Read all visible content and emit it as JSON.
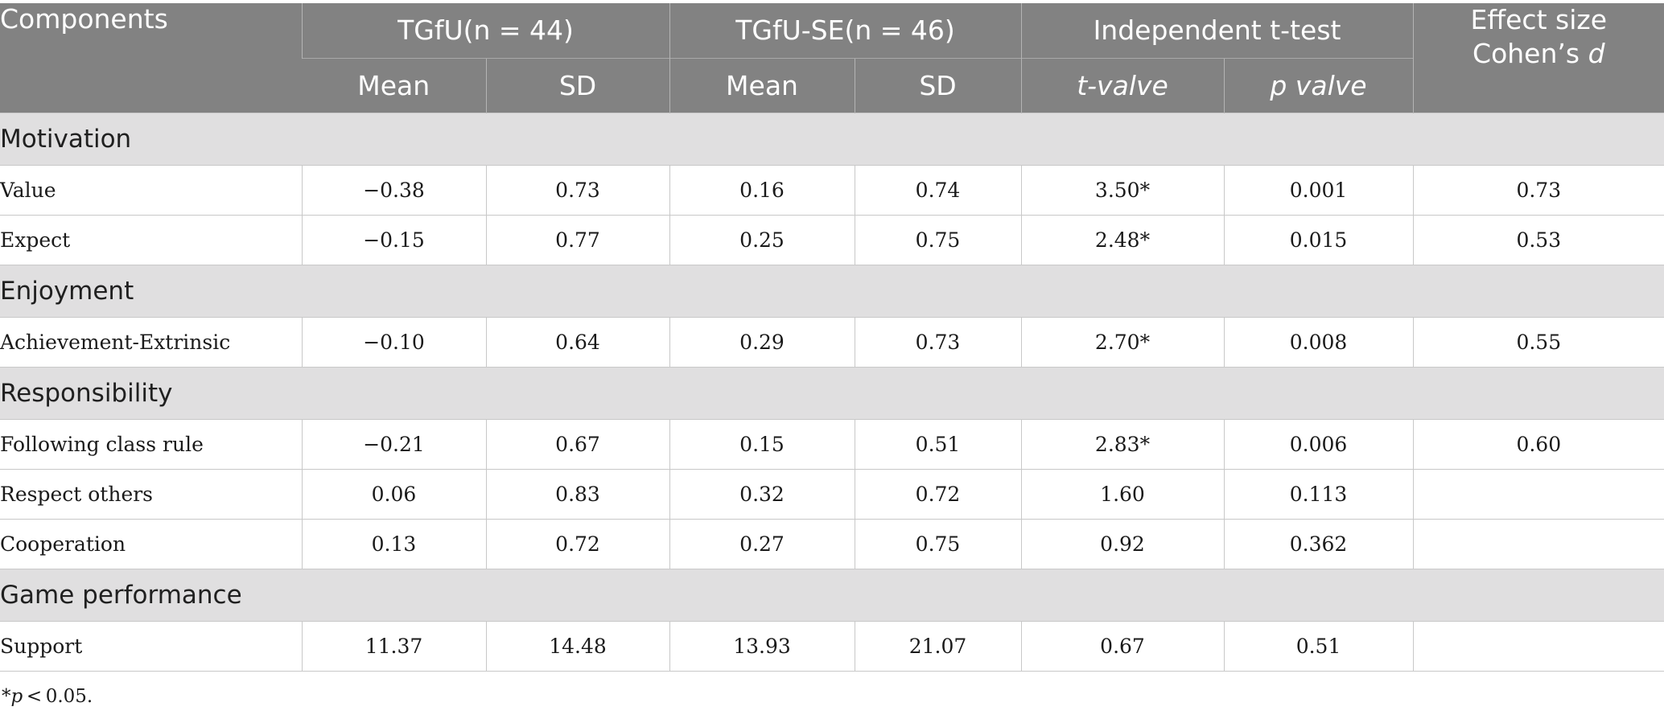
{
  "header": {
    "components": "Components",
    "group1": "TGfU(n = 44)",
    "group2": "TGfU-SE(n = 46)",
    "ttest": "Independent t-test",
    "effect_line1": "Effect size",
    "effect_line2_prefix": "Cohen’s ",
    "effect_line2_italic": "d",
    "mean": "Mean",
    "sd": "SD",
    "t_value": "t-valve",
    "p_value": "p valve"
  },
  "sections": [
    {
      "title": "Motivation",
      "rows": [
        {
          "label": "Value",
          "tgfu_mean": "−0.38",
          "tgfu_sd": "0.73",
          "se_mean": "0.16",
          "se_sd": "0.74",
          "t": "3.50*",
          "p": "0.001",
          "d": "0.73"
        },
        {
          "label": "Expect",
          "tgfu_mean": "−0.15",
          "tgfu_sd": "0.77",
          "se_mean": "0.25",
          "se_sd": "0.75",
          "t": "2.48*",
          "p": "0.015",
          "d": "0.53"
        }
      ]
    },
    {
      "title": "Enjoyment",
      "rows": [
        {
          "label": "Achievement-Extrinsic",
          "tgfu_mean": "−0.10",
          "tgfu_sd": "0.64",
          "se_mean": "0.29",
          "se_sd": "0.73",
          "t": "2.70*",
          "p": "0.008",
          "d": "0.55"
        }
      ]
    },
    {
      "title": "Responsibility",
      "rows": [
        {
          "label": "Following class rule",
          "tgfu_mean": "−0.21",
          "tgfu_sd": "0.67",
          "se_mean": "0.15",
          "se_sd": "0.51",
          "t": "2.83*",
          "p": "0.006",
          "d": "0.60"
        },
        {
          "label": "Respect others",
          "tgfu_mean": "0.06",
          "tgfu_sd": "0.83",
          "se_mean": "0.32",
          "se_sd": "0.72",
          "t": "1.60",
          "p": "0.113",
          "d": ""
        },
        {
          "label": "Cooperation",
          "tgfu_mean": "0.13",
          "tgfu_sd": "0.72",
          "se_mean": "0.27",
          "se_sd": "0.75",
          "t": "0.92",
          "p": "0.362",
          "d": ""
        }
      ]
    },
    {
      "title": "Game performance",
      "rows": [
        {
          "label": "Support",
          "tgfu_mean": "11.37",
          "tgfu_sd": "14.48",
          "se_mean": "13.93",
          "se_sd": "21.07",
          "t": "0.67",
          "p": "0.51",
          "d": ""
        }
      ]
    }
  ],
  "note": {
    "prefix": "*",
    "italic": "p",
    "suffix": " < 0.05."
  }
}
